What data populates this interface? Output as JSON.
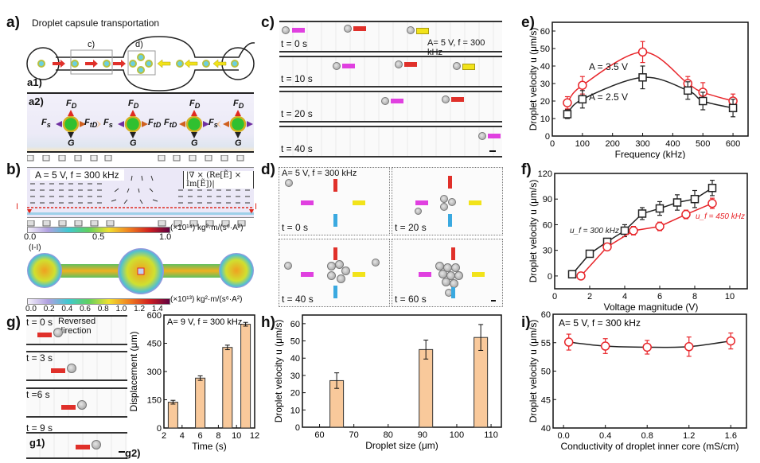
{
  "panels": {
    "a": {
      "label": "a)",
      "title": "Droplet capsule transportation",
      "inset_c": "c)",
      "inset_d": "d)",
      "a1": "a1)",
      "a2": "a2)",
      "forces": {
        "FD": "F",
        "FD_sub": "D",
        "Fs": "F",
        "Fs_sub": "s",
        "FtD": "F",
        "FtD_sub": "tD",
        "G": "G"
      }
    },
    "b": {
      "label": "b)",
      "condition": "A = 5 V, f = 300 kHz",
      "formula": "|∇ × (Re[Ẽ] × Im[Ẽ])|",
      "section_marker": "I",
      "colorbar1_unit": "(×10¹⁴) kg²·m/(s⁶·A²)",
      "colorbar1_ticks": [
        "0.0",
        "0.5",
        "1.0"
      ],
      "section_label": "(I-I)",
      "colorbar2_unit": "(×10¹³) kg²·m/(s⁶·A²)",
      "colorbar2_ticks": [
        "0.0",
        "0.2",
        "0.4",
        "0.6",
        "0.8",
        "1.0",
        "1.2",
        "1.4"
      ]
    },
    "c": {
      "label": "c)",
      "condition": "A= 5 V, f = 300 kHz",
      "frames": [
        "t = 0 s",
        "t = 10 s",
        "t = 20 s",
        "t = 40 s"
      ]
    },
    "d": {
      "label": "d)",
      "condition": "A= 5 V, f = 300 kHz",
      "frames": [
        "t = 0 s",
        "t = 20 s",
        "t = 40 s",
        "t = 60 s"
      ]
    },
    "g": {
      "label": "g)",
      "note": "Reversed direction",
      "frames": [
        "t = 0 s",
        "t = 3 s",
        "t =6 s",
        "t = 9 s"
      ],
      "g1": "g1)",
      "g2": "g2)"
    },
    "e": {
      "label": "e)"
    },
    "f": {
      "label": "f)"
    },
    "h": {
      "label": "h)"
    },
    "i": {
      "label": "i)"
    }
  },
  "colors": {
    "red": "#e8262b",
    "black": "#222222",
    "bar_fill": "#f9c99b",
    "arrow_red": "#e0302a",
    "arrow_magenta": "#e040e0",
    "arrow_yellow": "#f2e31a",
    "arrow_blue": "#3aa9e0"
  },
  "chart_data": [
    {
      "id": "e",
      "type": "line",
      "title": "",
      "xlabel": "Frequency (kHz)",
      "ylabel": "Droplet velocity u (μm/s)",
      "xlim": [
        0,
        650
      ],
      "ylim": [
        0,
        65
      ],
      "xticks": [
        0,
        100,
        200,
        300,
        400,
        500,
        600
      ],
      "yticks": [
        0,
        10,
        20,
        30,
        40,
        50,
        60
      ],
      "series": [
        {
          "name": "A = 3.5 V",
          "color": "#e8262b",
          "marker": "circle",
          "x": [
            50,
            100,
            300,
            450,
            500,
            600
          ],
          "y": [
            19,
            29,
            48,
            30,
            25,
            20
          ],
          "err": [
            3.5,
            5,
            6,
            4,
            5.5,
            4
          ]
        },
        {
          "name": "A = 2.5 V",
          "color": "#222222",
          "marker": "square",
          "x": [
            50,
            100,
            300,
            450,
            500,
            600
          ],
          "y": [
            12.5,
            21,
            33.5,
            26,
            20,
            16
          ],
          "err": [
            2.5,
            5,
            6.5,
            5,
            5,
            5
          ]
        }
      ],
      "annotations": [
        "A = 3.5 V",
        "A = 2.5 V"
      ]
    },
    {
      "id": "f",
      "type": "line",
      "xlabel": "Voltage magnitude (V)",
      "ylabel": "Droplet velocity u (μm/s)",
      "xlim": [
        0,
        11
      ],
      "ylim": [
        -15,
        120
      ],
      "xticks": [
        0,
        2,
        4,
        6,
        8,
        10
      ],
      "yticks": [
        0,
        30,
        60,
        90,
        120
      ],
      "series": [
        {
          "name": "u f = 300 kHz",
          "color": "#222222",
          "marker": "square",
          "x": [
            1,
            2,
            3,
            4,
            5,
            6,
            7,
            8,
            9
          ],
          "y": [
            2,
            26,
            40,
            53,
            73,
            79,
            86,
            90,
            103
          ],
          "err": [
            3,
            3,
            4,
            7,
            7,
            8,
            9,
            10,
            9
          ]
        },
        {
          "name": "u f = 450 kHz",
          "color": "#e8262b",
          "marker": "circle",
          "x": [
            1.5,
            3,
            4.5,
            6,
            7.5,
            9
          ],
          "y": [
            0,
            34,
            53,
            58,
            72,
            85
          ],
          "err": [
            0,
            3,
            5,
            5,
            5,
            6
          ]
        }
      ],
      "annotations": [
        "u_f = 300 kHz",
        "u_f = 450 kHz"
      ]
    },
    {
      "id": "g2",
      "type": "bar",
      "xlabel": "Time (s)",
      "ylabel": "Displacement (μm)",
      "annotation": "A= 9 V, f = 300 kHz",
      "xlim": [
        2,
        12
      ],
      "ylim": [
        0,
        600
      ],
      "xticks": [
        2,
        4,
        6,
        8,
        10,
        12
      ],
      "yticks": [
        0,
        150,
        300,
        450,
        600
      ],
      "x": [
        3,
        6,
        9,
        11
      ],
      "values": [
        137,
        265,
        428,
        551
      ],
      "err": [
        10,
        12,
        12,
        10
      ]
    },
    {
      "id": "h",
      "type": "bar",
      "xlabel": "Droplet size (μm)",
      "ylabel": "Droplet velocity u (μm/s)",
      "xlim": [
        55,
        113
      ],
      "ylim": [
        0,
        65
      ],
      "xticks": [
        60,
        70,
        80,
        90,
        100,
        110
      ],
      "yticks": [
        0,
        10,
        20,
        30,
        40,
        50,
        60
      ],
      "x": [
        65,
        91,
        107
      ],
      "values": [
        27,
        45,
        52
      ],
      "err": [
        4.5,
        5.5,
        7.5
      ]
    },
    {
      "id": "i",
      "type": "line",
      "xlabel": "Conductivity of droplet inner core (mS/cm)",
      "ylabel": "Droplet velocity u (μm/s)",
      "annotation": "A= 5 V, f = 300 kHz",
      "xlim": [
        -0.1,
        1.75
      ],
      "ylim": [
        40,
        60
      ],
      "xticks": [
        0.0,
        0.4,
        0.8,
        1.2,
        1.6
      ],
      "xticklabels": [
        "0.0",
        "0.4",
        "0.8",
        "1.2",
        "1.6"
      ],
      "yticks": [
        40,
        45,
        50,
        55,
        60
      ],
      "series": [
        {
          "name": "velocity",
          "color": "#e8262b",
          "line_color": "#222222",
          "marker": "circle",
          "x": [
            0.05,
            0.4,
            0.8,
            1.2,
            1.6
          ],
          "y": [
            55.1,
            54.4,
            54.2,
            54.3,
            55.3
          ],
          "err": [
            1.4,
            1.3,
            1.2,
            1.7,
            1.4
          ]
        }
      ]
    }
  ]
}
